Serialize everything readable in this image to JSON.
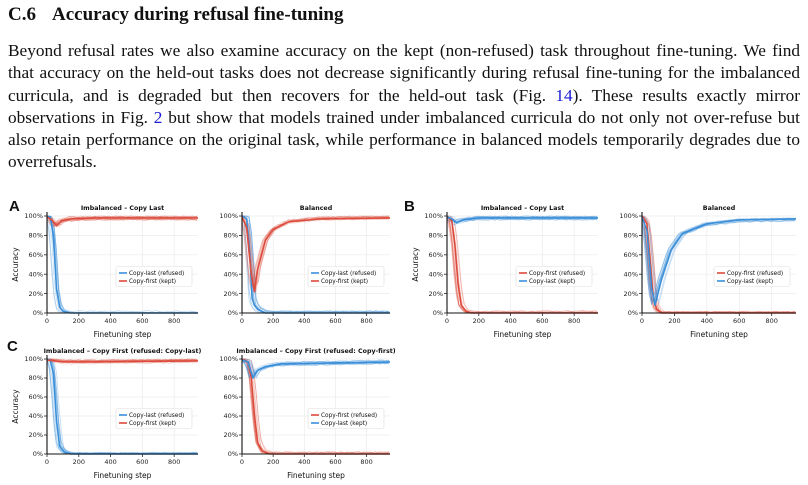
{
  "section": {
    "number": "C.6",
    "title": "Accuracy during refusal fine-tuning"
  },
  "paragraph": {
    "part1": "Beyond refusal rates we also examine accuracy on the kept (non-refused) task throughout fine-tuning. We find that accuracy on the held-out tasks does not decrease significantly during refusal fine-tuning for the imbalanced curricula, and is degraded but then recovers for the held-out task (Fig. ",
    "fig_ref_1": "14",
    "part2": "). These results exactly mirror observations in Fig. ",
    "fig_ref_2": "2",
    "part3": " but show that models trained under imbalanced curricula do not only not over-refuse but also retain performance on the original task, while performance in balanced models temporarily degrades due to overrefusals."
  },
  "panel_labels": {
    "a": "A",
    "b": "B",
    "c": "C"
  },
  "colors": {
    "red": "#dc4b3c",
    "blue": "#3a8fd8"
  },
  "chart_data": [
    {
      "id": "A1",
      "panel": "A",
      "type": "line",
      "title": "Imbalanced – Copy Last",
      "xlabel": "Finetuning step",
      "ylabel": "Accuracy",
      "xlim": [
        0,
        950
      ],
      "ylim": [
        0,
        100
      ],
      "xticks": [
        "0",
        "200",
        "400",
        "600",
        "800"
      ],
      "yticks": [
        "0%",
        "20%",
        "40%",
        "60%",
        "80%",
        "100%"
      ],
      "grid": true,
      "legend_position": "center-right",
      "series": [
        {
          "name": "Copy-last (refused)",
          "color": "#3a8fd8",
          "x": [
            0,
            20,
            40,
            60,
            80,
            100,
            150,
            950
          ],
          "y": [
            100,
            99,
            80,
            25,
            6,
            2,
            0,
            0
          ]
        },
        {
          "name": "Copy-first (kept)",
          "color": "#dc4b3c",
          "x": [
            0,
            30,
            60,
            90,
            150,
            300,
            950
          ],
          "y": [
            99,
            96,
            90,
            95,
            97,
            98,
            98
          ]
        }
      ]
    },
    {
      "id": "A2",
      "panel": "A",
      "type": "line",
      "title": "Balanced",
      "xlabel": "",
      "ylabel": "",
      "xlim": [
        0,
        950
      ],
      "ylim": [
        0,
        100
      ],
      "xticks": [
        "0",
        "200",
        "400",
        "600",
        "800"
      ],
      "yticks": [
        "0%",
        "20%",
        "40%",
        "60%",
        "80%",
        "100%"
      ],
      "grid": true,
      "legend_position": "center-right",
      "series": [
        {
          "name": "Copy-last (refused)",
          "color": "#3a8fd8",
          "x": [
            0,
            30,
            50,
            65,
            80,
            100,
            150,
            950
          ],
          "y": [
            100,
            97,
            60,
            15,
            8,
            4,
            0,
            0
          ]
        },
        {
          "name": "Copy-first (kept)",
          "color": "#dc4b3c",
          "x": [
            0,
            30,
            60,
            80,
            100,
            150,
            200,
            300,
            500,
            950
          ],
          "y": [
            99,
            88,
            40,
            22,
            45,
            75,
            86,
            94,
            97,
            98
          ]
        }
      ]
    },
    {
      "id": "B1",
      "panel": "B",
      "type": "line",
      "title": "Imbalanced – Copy Last",
      "xlabel": "Finetuning step",
      "ylabel": "Accuracy",
      "xlim": [
        0,
        950
      ],
      "ylim": [
        0,
        100
      ],
      "xticks": [
        "0",
        "200",
        "400",
        "600",
        "800"
      ],
      "yticks": [
        "0%",
        "20%",
        "40%",
        "60%",
        "80%",
        "100%"
      ],
      "grid": true,
      "legend_position": "center-right",
      "series": [
        {
          "name": "Copy-first (refused)",
          "color": "#dc4b3c",
          "x": [
            0,
            30,
            50,
            70,
            90,
            120,
            150,
            950
          ],
          "y": [
            100,
            95,
            70,
            30,
            8,
            2,
            0,
            0
          ]
        },
        {
          "name": "Copy-last (kept)",
          "color": "#3a8fd8",
          "x": [
            0,
            30,
            60,
            100,
            200,
            950
          ],
          "y": [
            99,
            97,
            93,
            96,
            98,
            98
          ]
        }
      ]
    },
    {
      "id": "B2",
      "panel": "B",
      "type": "line",
      "title": "Balanced",
      "xlabel": "Finetuning step",
      "ylabel": "",
      "xlim": [
        0,
        950
      ],
      "ylim": [
        0,
        100
      ],
      "xticks": [
        "0",
        "200",
        "400",
        "600",
        "800"
      ],
      "yticks": [
        "0%",
        "20%",
        "40%",
        "60%",
        "80%",
        "100%"
      ],
      "grid": true,
      "legend_position": "center-right",
      "series": [
        {
          "name": "Copy-first (refused)",
          "color": "#dc4b3c",
          "x": [
            0,
            30,
            50,
            70,
            90,
            120,
            950
          ],
          "y": [
            100,
            92,
            55,
            15,
            4,
            0,
            0
          ]
        },
        {
          "name": "Copy-last (kept)",
          "color": "#3a8fd8",
          "x": [
            0,
            30,
            60,
            80,
            120,
            180,
            250,
            400,
            600,
            950
          ],
          "y": [
            99,
            85,
            25,
            8,
            35,
            65,
            82,
            92,
            96,
            97
          ]
        }
      ]
    },
    {
      "id": "C1",
      "panel": "C",
      "type": "line",
      "title": "Imbalanced – Copy First  (refused: Copy-last)",
      "xlabel": "Finetuning step",
      "ylabel": "Accuracy",
      "xlim": [
        0,
        950
      ],
      "ylim": [
        0,
        100
      ],
      "xticks": [
        "0",
        "200",
        "400",
        "600",
        "800"
      ],
      "yticks": [
        "0%",
        "20%",
        "40%",
        "60%",
        "80%",
        "100%"
      ],
      "grid": true,
      "legend_position": "center-right",
      "series": [
        {
          "name": "Copy-last (refused)",
          "color": "#3a8fd8",
          "x": [
            0,
            20,
            40,
            60,
            80,
            110,
            150,
            950
          ],
          "y": [
            100,
            99,
            85,
            35,
            8,
            2,
            0,
            0
          ]
        },
        {
          "name": "Copy-first (kept)",
          "color": "#dc4b3c",
          "x": [
            0,
            50,
            100,
            300,
            950
          ],
          "y": [
            99,
            98,
            97,
            97,
            98
          ]
        }
      ]
    },
    {
      "id": "C2",
      "panel": "C",
      "type": "line",
      "title": "Imbalanced – Copy First  (refused: Copy-first)",
      "xlabel": "Finetuning step",
      "ylabel": "",
      "xlim": [
        0,
        950
      ],
      "ylim": [
        0,
        100
      ],
      "xticks": [
        "0",
        "200",
        "400",
        "600",
        "800"
      ],
      "yticks": [
        "0%",
        "20%",
        "40%",
        "60%",
        "80%",
        "100%"
      ],
      "grid": true,
      "legend_position": "center-right",
      "series": [
        {
          "name": "Copy-first (refused)",
          "color": "#dc4b3c",
          "x": [
            0,
            40,
            60,
            80,
            100,
            130,
            180,
            950
          ],
          "y": [
            100,
            97,
            80,
            40,
            12,
            3,
            0,
            0
          ]
        },
        {
          "name": "Copy-last (kept)",
          "color": "#3a8fd8",
          "x": [
            0,
            40,
            70,
            100,
            150,
            250,
            950
          ],
          "y": [
            99,
            97,
            80,
            88,
            92,
            95,
            97
          ]
        }
      ]
    }
  ]
}
